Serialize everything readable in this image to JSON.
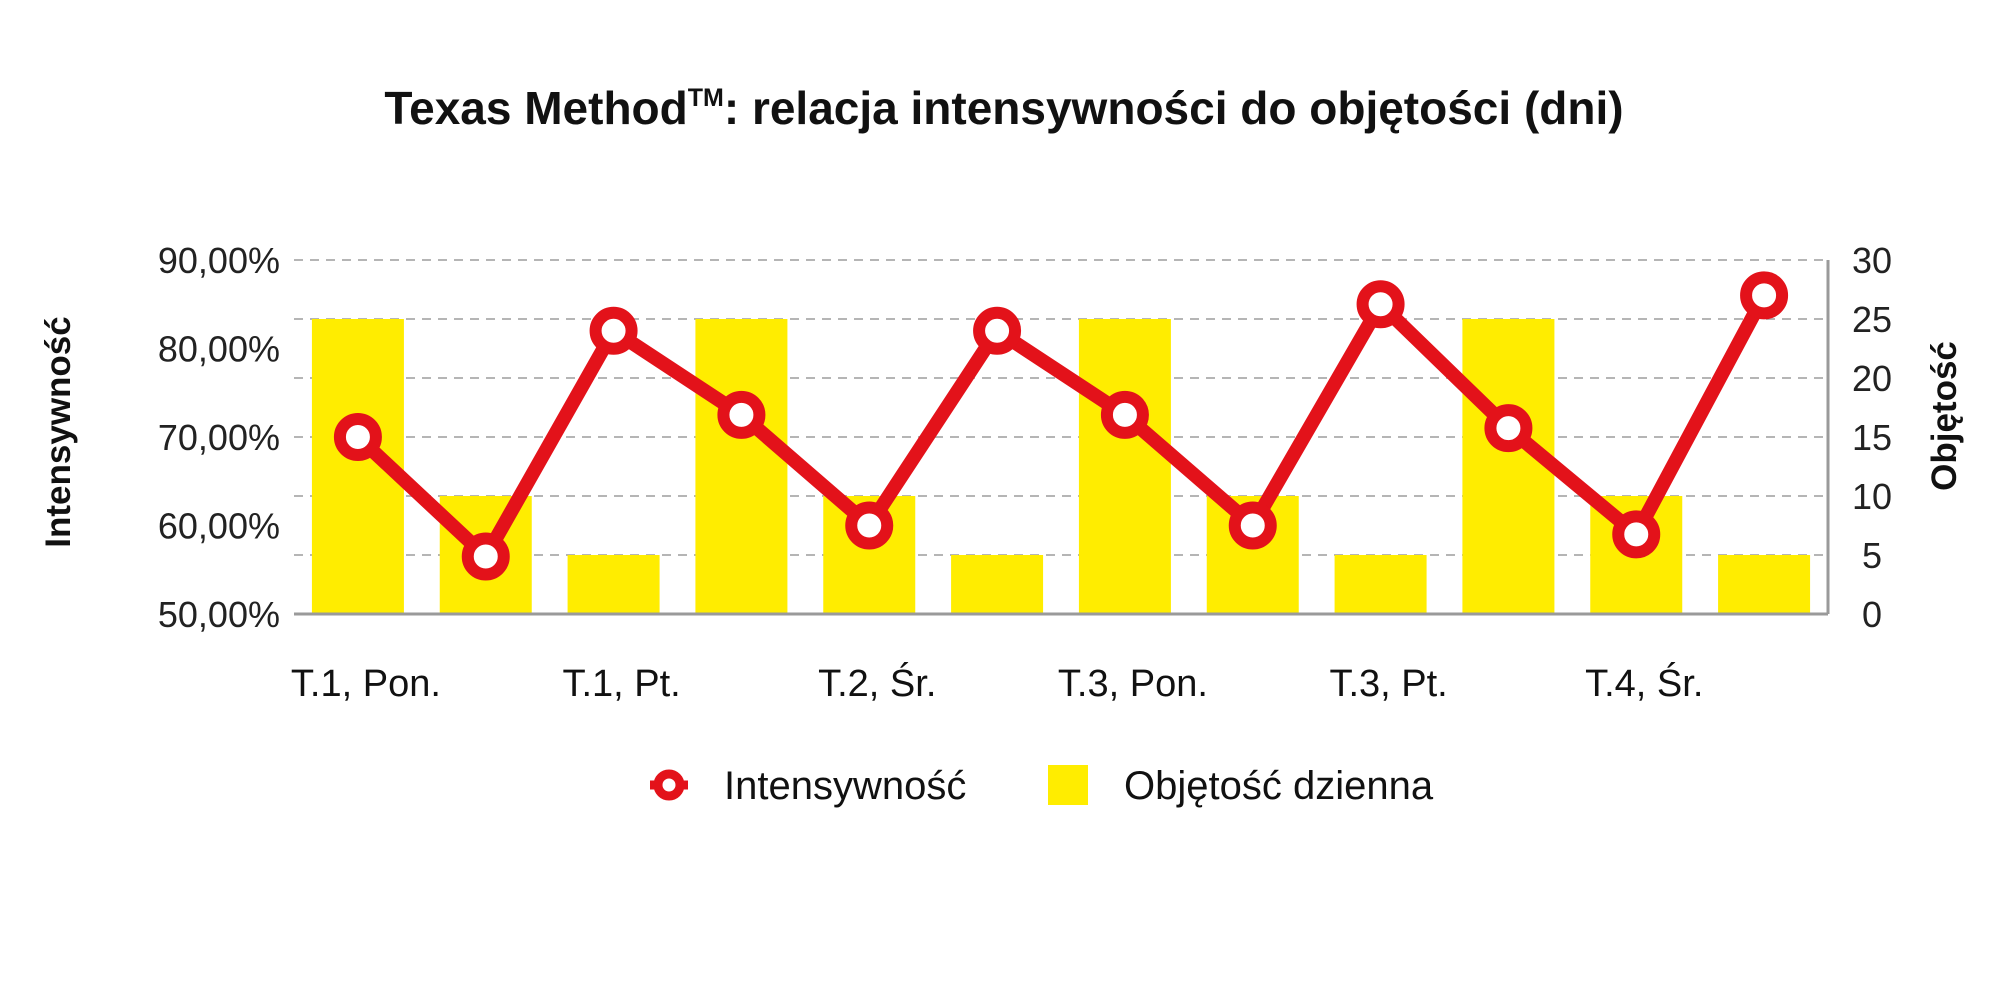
{
  "chart_data": {
    "type": "bar+line",
    "title": "Texas Method",
    "title_superscript": "TM",
    "title_suffix": ": relacja intensywności do objętości (dni)",
    "categories": [
      "T.1, Pon.",
      "",
      "T.1, Pt.",
      "",
      "T.2, Śr.",
      "",
      "T.3, Pon.",
      "",
      "T.3, Pt.",
      "",
      "T.4, Śr.",
      ""
    ],
    "category_labels": [
      "T.1, Pon.",
      "T.1, Pt.",
      "T.2, Śr.",
      "T.3, Pon.",
      "T.3, Pt.",
      "T.4, Śr."
    ],
    "series": [
      {
        "name": "Objętość dzienna",
        "type": "bar",
        "axis": "right",
        "color": "#ffed00",
        "values": [
          25,
          10,
          5,
          25,
          10,
          5,
          25,
          10,
          5,
          25,
          10,
          5
        ]
      },
      {
        "name": "Intensywność",
        "type": "line",
        "axis": "left",
        "color": "#e3121a",
        "values": [
          0.7,
          0.565,
          0.82,
          0.725,
          0.6,
          0.82,
          0.725,
          0.6,
          0.85,
          0.71,
          0.59,
          0.86
        ]
      }
    ],
    "y_left": {
      "label": "Intensywność",
      "ylim": [
        0.5,
        0.9
      ],
      "ticks": [
        "50,00%",
        "60,00%",
        "70,00%",
        "80,00%",
        "90,00%"
      ]
    },
    "y_right": {
      "label": "Objętość",
      "ylim": [
        0,
        30
      ],
      "ticks": [
        "0",
        "5",
        "10",
        "15",
        "20",
        "25",
        "30"
      ]
    },
    "grid": "horizontal dashed",
    "legend": "bottom-center"
  }
}
